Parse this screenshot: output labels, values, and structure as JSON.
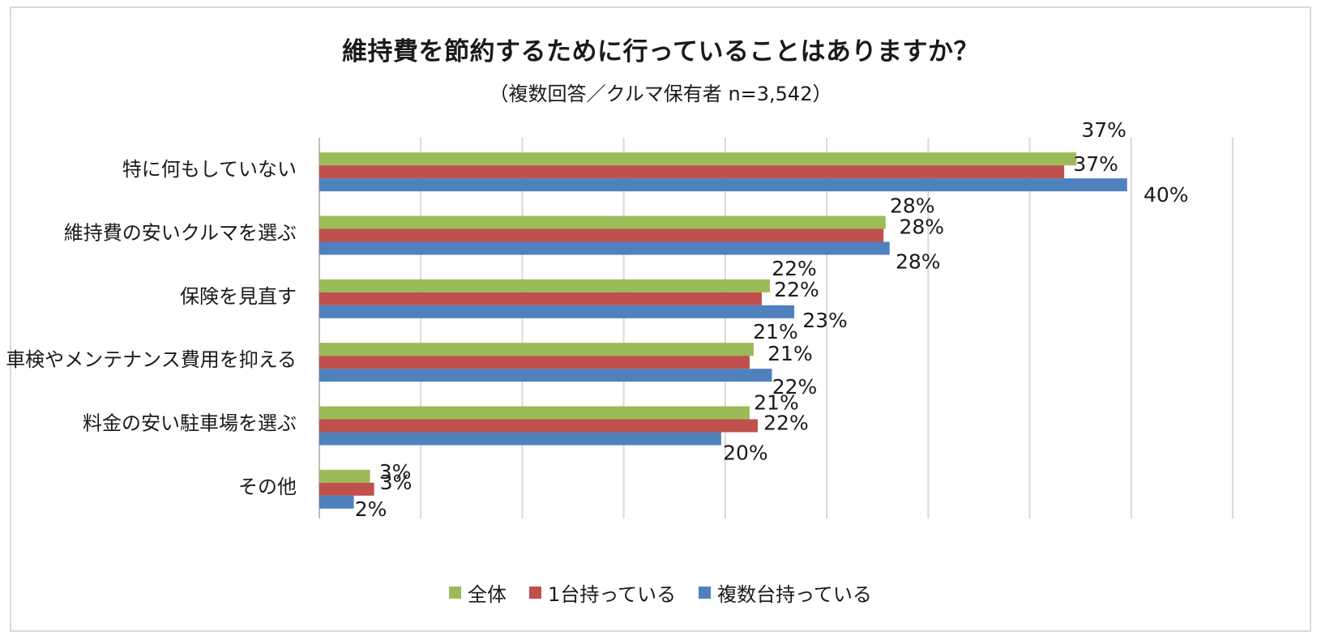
{
  "title": "維持費を節約するために行っていることはありますか？",
  "subtitle": "（複数回答／クルマ保有者 n=3,542）",
  "chart_data": {
    "type": "bar",
    "orientation": "horizontal",
    "title": "維持費を節約するために行っていることはありますか？",
    "subtitle": "（複数回答／クルマ保有者 n=3,542）",
    "categories": [
      "特に何もしていない",
      "維持費の安いクルマを選ぶ",
      "保険を見直す",
      "車検やメンテナンス費用を抑える",
      "料金の安い駐車場を選ぶ",
      "その他"
    ],
    "series": [
      {
        "name": "全体",
        "color": "#9bbb59",
        "values": [
          37.3,
          27.9,
          22.2,
          21.4,
          21.2,
          2.5
        ],
        "labels": [
          "37%",
          "28%",
          "22%",
          "21%",
          "21%",
          "3%"
        ]
      },
      {
        "name": "1台持っている",
        "color": "#c0504d",
        "values": [
          36.7,
          27.8,
          21.8,
          21.2,
          21.6,
          2.7
        ],
        "labels": [
          "37%",
          "28%",
          "22%",
          "21%",
          "22%",
          "3%"
        ]
      },
      {
        "name": "複数台持っている",
        "color": "#4f81bd",
        "values": [
          39.8,
          28.1,
          23.4,
          22.3,
          19.8,
          1.7
        ],
        "labels": [
          "40%",
          "28%",
          "23%",
          "22%",
          "20%",
          "2%"
        ]
      }
    ],
    "xlim": [
      0,
      45
    ],
    "x_gridline_step": 5,
    "grid": true,
    "tick_labels_shown": false,
    "legend_position": "bottom"
  }
}
